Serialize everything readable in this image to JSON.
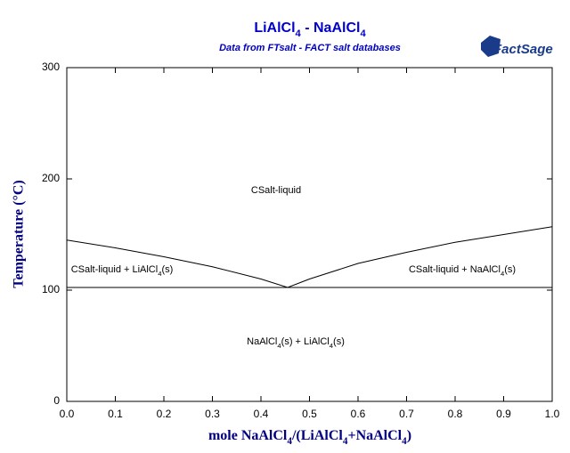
{
  "chart_data": {
    "type": "line",
    "title": "LiAlCl4 - NaAlCl4",
    "subtitle": "Data from FTsalt - FACT salt databases",
    "logo": "FactSage",
    "x_label": "mole NaAlCl4/(LiAlCl4+NaAlCl4)",
    "y_label": "Temperature (°C)",
    "annotations": [
      "CSalt-liquid",
      "CSalt-liquid + LiAlCl4(s)",
      "CSalt-liquid + NaAlCl4(s)",
      "NaAlCl4(s) + LiAlCl4(s)"
    ],
    "xlim": [
      0,
      1
    ],
    "ylim": [
      0,
      300
    ],
    "xticks": [
      {
        "value": 0,
        "label": "0.0"
      },
      0.1,
      0.2,
      0.3,
      0.4,
      0.5,
      0.6,
      0.7,
      0.8,
      0.9,
      {
        "value": 1,
        "label": "1.0"
      }
    ],
    "yticks": [
      0,
      100,
      200,
      300
    ],
    "series": [
      {
        "color": "#000000",
        "x": [
          0,
          0.1,
          0.2,
          0.3,
          0.4,
          0.455,
          0.5,
          0.6,
          0.7,
          0.8,
          0.9,
          1
        ],
        "values": [
          145,
          138,
          130,
          121,
          110,
          102.4,
          110,
          124,
          134,
          143,
          150,
          157
        ]
      },
      {
        "color": "#000000",
        "x": [
          0,
          1
        ],
        "values": [
          102.4,
          102.4
        ]
      }
    ]
  }
}
